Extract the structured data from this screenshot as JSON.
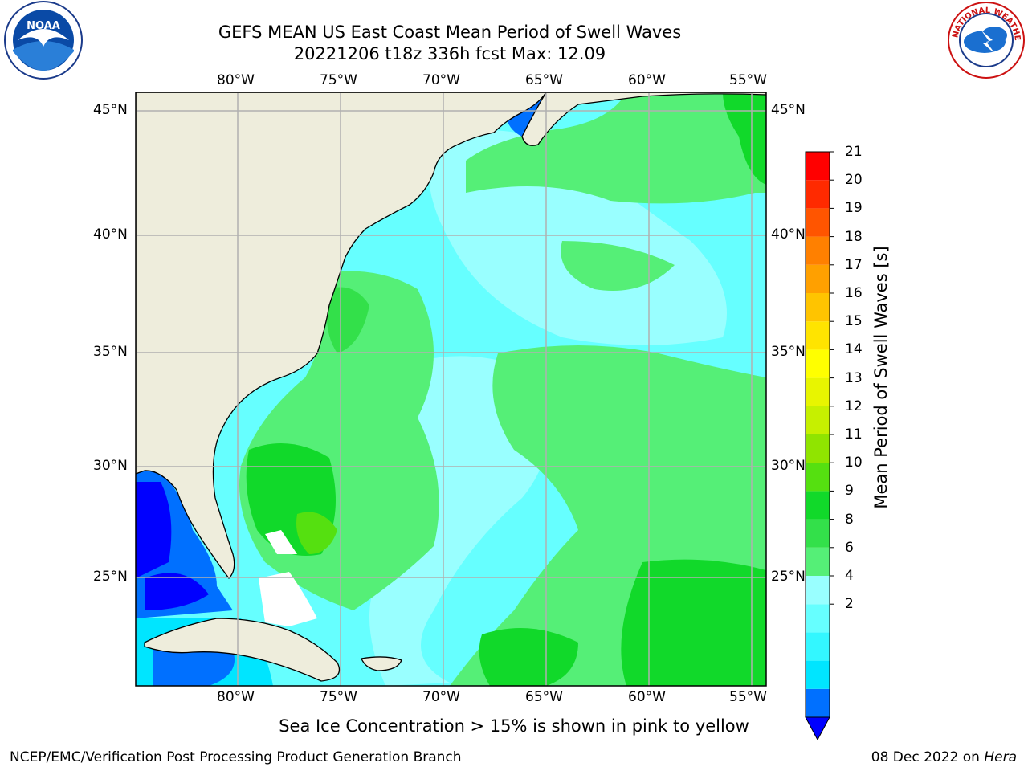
{
  "title": {
    "line1": "GEFS MEAN US East Coast Mean Period of Swell Waves",
    "line2": "20221206 t18z 336h fcst   Max: 12.09"
  },
  "map": {
    "lon_labels": [
      "80°W",
      "75°W",
      "70°W",
      "65°W",
      "60°W",
      "55°W"
    ],
    "lat_labels": [
      "45°N",
      "40°N",
      "35°N",
      "30°N",
      "25°N"
    ],
    "extent": {
      "lon": [
        -85,
        -54.3
      ],
      "lat": [
        20.5,
        45.8
      ]
    },
    "colors": {
      "land": "#eeeddc",
      "grid": "#b0b0b0",
      "coast": "#000000"
    }
  },
  "colorbar": {
    "title": "Mean Period of Swell Waves [s]",
    "labels": [
      "21",
      "20",
      "19",
      "18",
      "17",
      "16",
      "15",
      "14",
      "13",
      "12",
      "11",
      "10",
      "9",
      "8",
      "6",
      "4",
      "2"
    ],
    "colors": [
      "#0000ff",
      "#0070ff",
      "#00e5ff",
      "#33f7ff",
      "#66ffff",
      "#99ffff",
      "#55ef77",
      "#33e04a",
      "#11d92a",
      "#55e010",
      "#90e400",
      "#c6f000",
      "#e8f500",
      "#ffff00",
      "#ffe400",
      "#ffc400",
      "#ffa000",
      "#ff8000",
      "#ff5500",
      "#ff2a00",
      "#ff0000"
    ]
  },
  "footer": {
    "note": "Sea Ice Concentration > 15% is shown in pink to yellow",
    "left": "NCEP/EMC/Verification Post Processing Product Generation Branch",
    "right_date": "08 Dec 2022 on",
    "right_host": "Hera"
  },
  "logos": {
    "noaa_text": "NOAA",
    "nws_text": "NATIONAL WEATHER SERVICE"
  }
}
